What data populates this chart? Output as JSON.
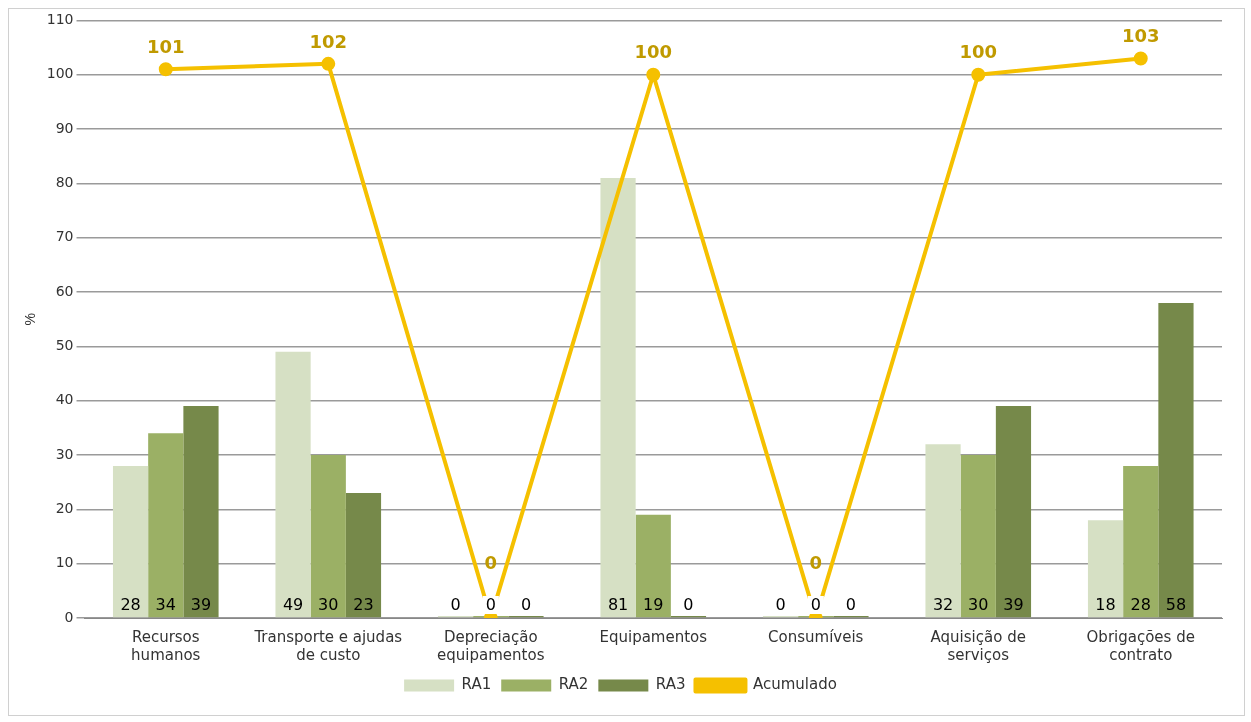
{
  "chart_data": {
    "type": "bar",
    "ylabel": "%",
    "categories": [
      "Recursos humanos",
      "Transporte e ajudas de custo",
      "Depreciação equipamentos",
      "Equipamentos",
      "Consumíveis",
      "Aquisição de serviços",
      "Obrigações de contrato"
    ],
    "series": [
      {
        "name": "RA1",
        "color": "#d6e0c4",
        "values": [
          28,
          49,
          0,
          81,
          0,
          32,
          18
        ]
      },
      {
        "name": "RA2",
        "color": "#9bb065",
        "values": [
          34,
          30,
          0,
          19,
          0,
          30,
          28
        ]
      },
      {
        "name": "RA3",
        "color": "#76894a",
        "values": [
          39,
          23,
          0,
          0,
          0,
          39,
          58
        ]
      },
      {
        "name": "Acumulado",
        "type": "line",
        "color": "#f5c000",
        "marker": "circle",
        "values": [
          101,
          102,
          0,
          100,
          0,
          100,
          103
        ]
      }
    ],
    "ylim": [
      0,
      110
    ],
    "yticks": [
      0,
      10,
      20,
      30,
      40,
      50,
      60,
      70,
      80,
      90,
      100,
      110
    ],
    "grid": "y",
    "legend": "bottom",
    "data_labels": true
  }
}
